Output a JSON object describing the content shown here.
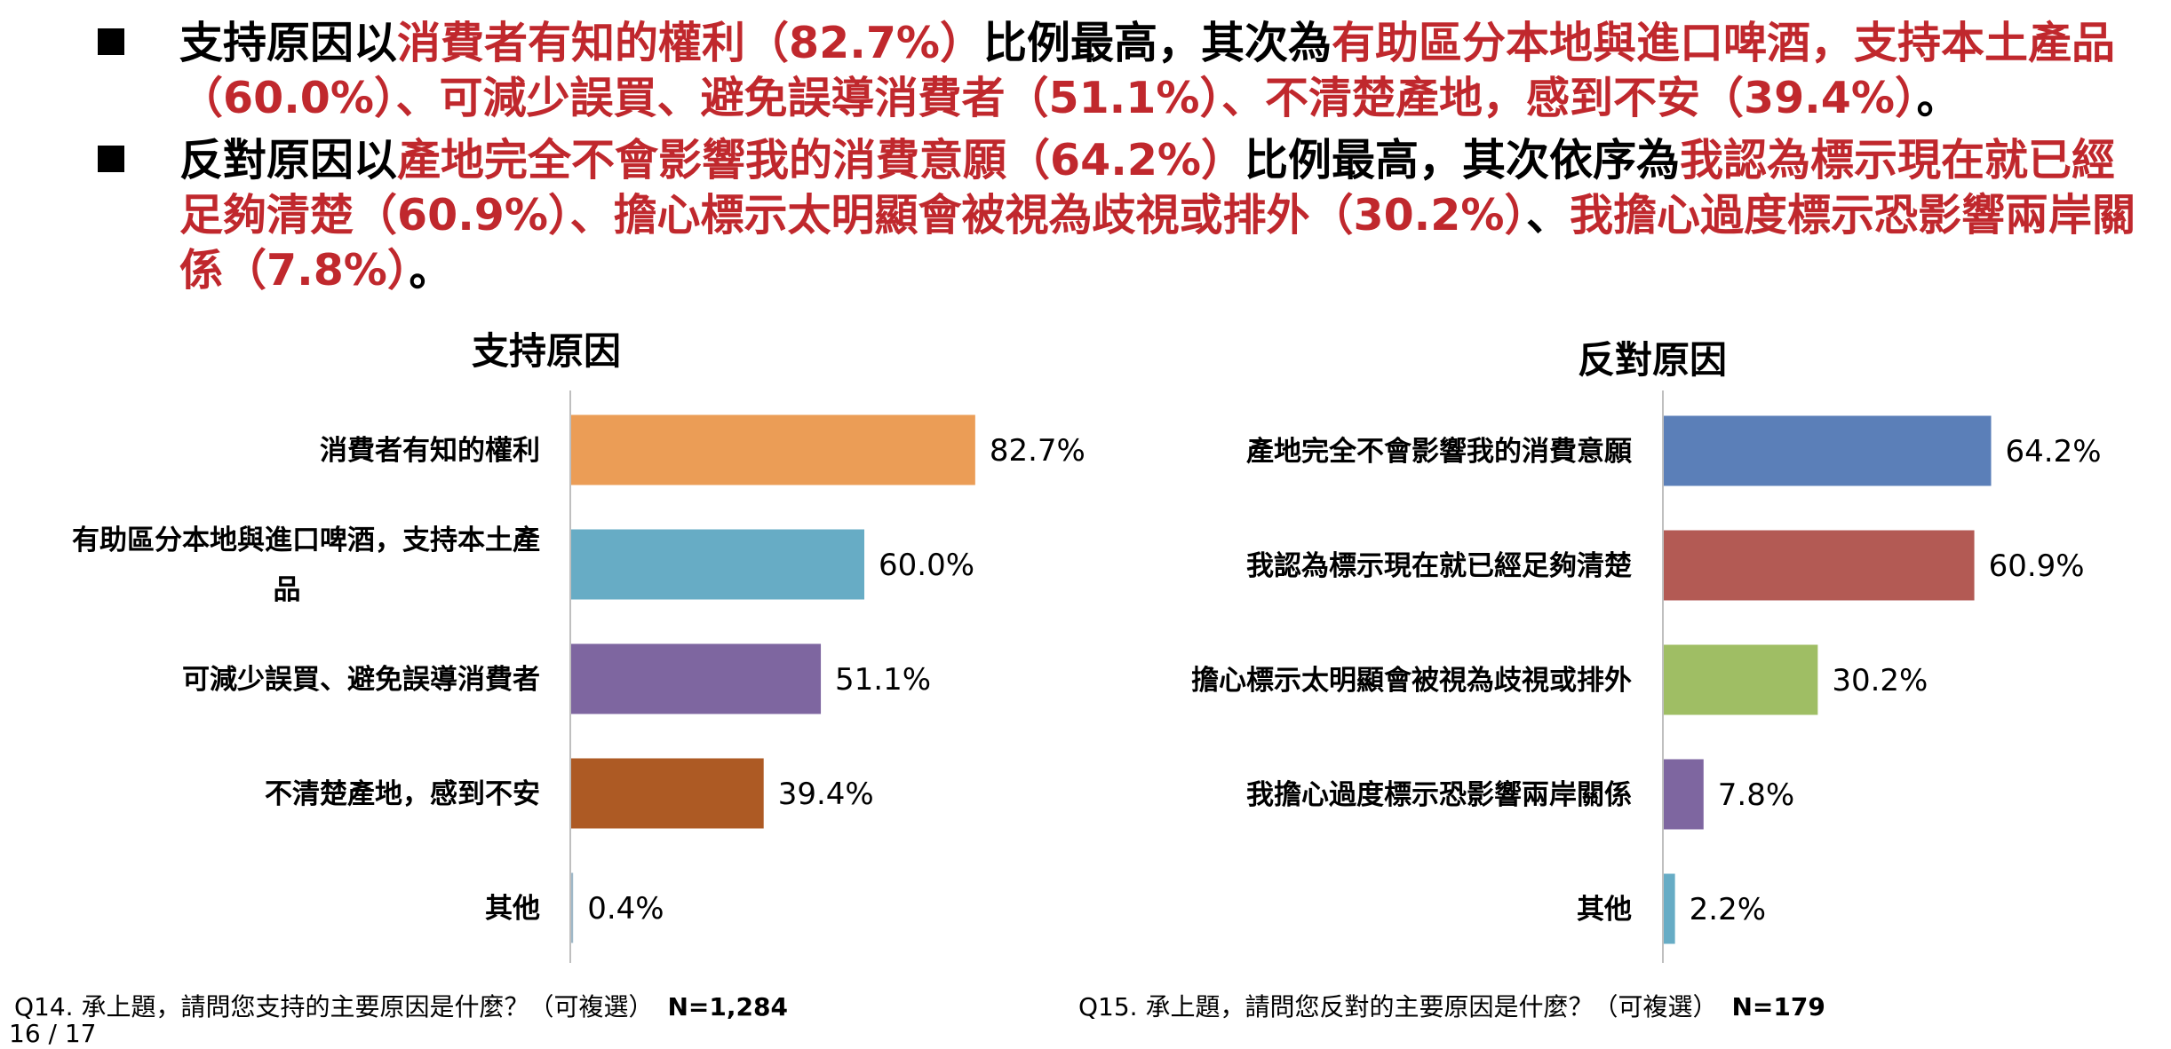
{
  "bullets": [
    {
      "segments": [
        {
          "text": "支持原因以",
          "hl": false
        },
        {
          "text": "消費者有知的權利（82.7%）",
          "hl": true
        },
        {
          "text": "比例最高，其次為",
          "hl": false
        },
        {
          "text": "有助區分本地與進口啤酒，支持本土產品（60.0%）、可減少誤買、避免誤導消費者（51.1%）、不清楚產地，感到不安（39.4%）",
          "hl": true
        },
        {
          "text": "。",
          "hl": false
        }
      ]
    },
    {
      "segments": [
        {
          "text": "反對原因以",
          "hl": false
        },
        {
          "text": "產地完全不會影響我的消費意願（64.2%）",
          "hl": true
        },
        {
          "text": "比例最高，其次依序為",
          "hl": false
        },
        {
          "text": "我認為標示現在就已經足夠清楚（60.9%）、擔心標示太明顯會被視為歧視或排外（30.2%）",
          "hl": true
        },
        {
          "text": "、",
          "hl": false
        },
        {
          "text": "我擔心過度標示恐影響兩岸關係（7.8%）",
          "hl": true
        },
        {
          "text": "。",
          "hl": false
        }
      ]
    }
  ],
  "chart_data": [
    {
      "type": "bar",
      "orientation": "horizontal",
      "title": "支持原因",
      "categories": [
        [
          "消費者有知的權利"
        ],
        [
          "有助區分本地與進口啤酒，支持本土產",
          "品"
        ],
        [
          "可減少誤買、避免誤導消費者"
        ],
        [
          "不清楚產地，感到不安"
        ],
        [
          "其他"
        ]
      ],
      "values": [
        82.7,
        60.0,
        51.1,
        39.4,
        0.4
      ],
      "value_labels": [
        "82.7%",
        "60.0%",
        "51.1%",
        "39.4%",
        "0.4%"
      ],
      "colors": [
        "#EB9D56",
        "#67ACC5",
        "#7E66A0",
        "#AD5A24",
        "#9FB8C8"
      ],
      "xlim": [
        0,
        100
      ],
      "grid": false
    },
    {
      "type": "bar",
      "orientation": "horizontal",
      "title": "反對原因",
      "categories": [
        [
          "產地完全不會影響我的消費意願"
        ],
        [
          "我認為標示現在就已經足夠清楚"
        ],
        [
          "擔心標示太明顯會被視為歧視或排外"
        ],
        [
          "我擔心過度標示恐影響兩岸關係"
        ],
        [
          "其他"
        ]
      ],
      "values": [
        64.2,
        60.9,
        30.2,
        7.8,
        2.2
      ],
      "value_labels": [
        "64.2%",
        "60.9%",
        "30.2%",
        "7.8%",
        "2.2%"
      ],
      "colors": [
        "#5B7FB8",
        "#B35A54",
        "#9FBE64",
        "#7E66A0",
        "#67ACC5"
      ],
      "xlim": [
        0,
        100
      ],
      "grid": false
    }
  ],
  "footnotes": [
    {
      "question": "Q14. 承上題，請問您支持的主要原因是什麼？（可複選）",
      "n": "N=1,284"
    },
    {
      "question": "Q15. 承上題，請問您反對的主要原因是什麼？（可複選）",
      "n": "N=179"
    }
  ],
  "page": "16 / 17"
}
